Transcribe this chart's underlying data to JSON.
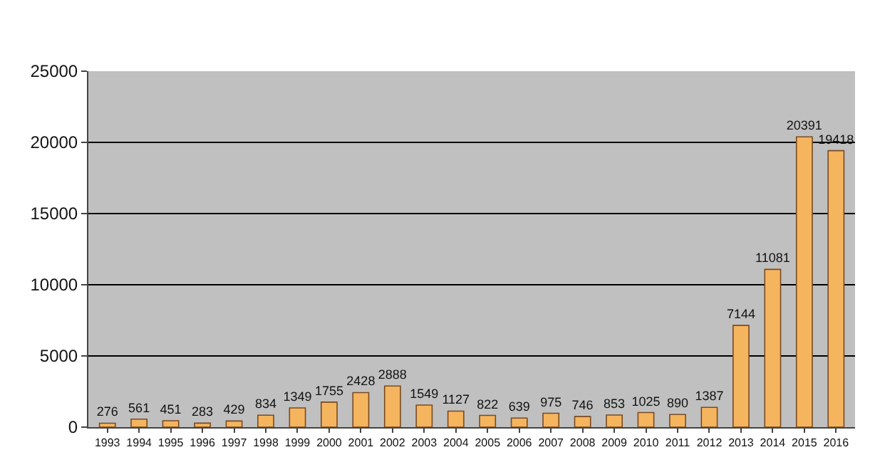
{
  "chart_data": {
    "type": "bar",
    "categories": [
      "1993",
      "1994",
      "1995",
      "1996",
      "1997",
      "1998",
      "1999",
      "2000",
      "2001",
      "2002",
      "2003",
      "2004",
      "2005",
      "2006",
      "2007",
      "2008",
      "2009",
      "2010",
      "2011",
      "2012",
      "2013",
      "2014",
      "2015",
      "2016"
    ],
    "values": [
      276,
      561,
      451,
      283,
      429,
      834,
      1349,
      1755,
      2428,
      2888,
      1549,
      1127,
      822,
      639,
      975,
      746,
      853,
      1025,
      890,
      1387,
      7144,
      11081,
      20391,
      19418
    ],
    "color": "#f5b55f",
    "ylim": [
      0,
      25000
    ],
    "yticks": [
      0,
      5000,
      10000,
      15000,
      20000,
      25000
    ],
    "grid": "y",
    "data_labels": true
  }
}
